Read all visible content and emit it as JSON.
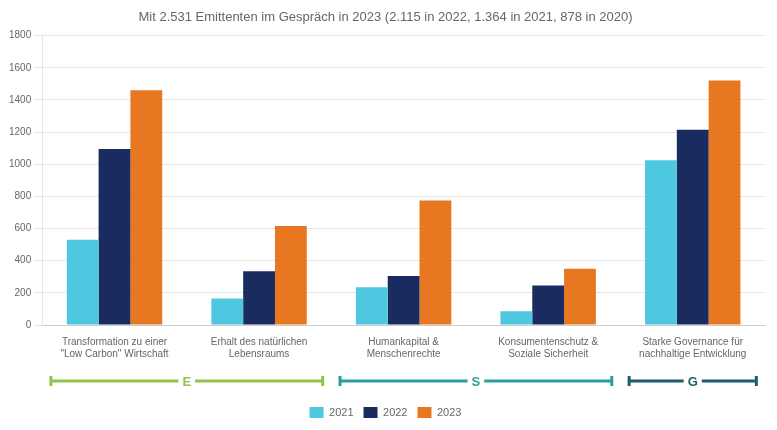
{
  "chart_data": {
    "type": "bar",
    "title": "Mit 2.531 Emittenten im Gespräch in 2023 (2.115 in 2022, 1.364 in 2021, 878 in 2020)",
    "categories": [
      "Transformation zu einer\n\"Low Carbon\" Wirtschaft",
      "Erhalt des natürlichen\nLebensraums",
      "Humankapital &\nMenschenrechte",
      "Konsumentenschutz &\nSoziale Sicherheit",
      "Starke Governance für\nnachhaltige Entwicklung"
    ],
    "series": [
      {
        "name": "2021",
        "color": "#4DC8E0",
        "values": [
          530,
          165,
          235,
          85,
          1025
        ]
      },
      {
        "name": "2022",
        "color": "#1A2B5F",
        "values": [
          1095,
          335,
          305,
          245,
          1215
        ]
      },
      {
        "name": "2023",
        "color": "#E87722",
        "values": [
          1460,
          615,
          775,
          350,
          1520
        ]
      }
    ],
    "ylim": [
      0,
      1800
    ],
    "yticks": [
      0,
      200,
      400,
      600,
      800,
      1000,
      1200,
      1400,
      1600,
      1800
    ],
    "grid": "y",
    "legend": "bottom",
    "annotations": [
      {
        "text": "E",
        "color": "#90C44A",
        "span": [
          0,
          1
        ]
      },
      {
        "text": "S",
        "color": "#2D9E9E",
        "span": [
          2,
          3
        ]
      },
      {
        "text": "G",
        "color": "#1A5F6E",
        "span": [
          4,
          4
        ]
      }
    ]
  }
}
